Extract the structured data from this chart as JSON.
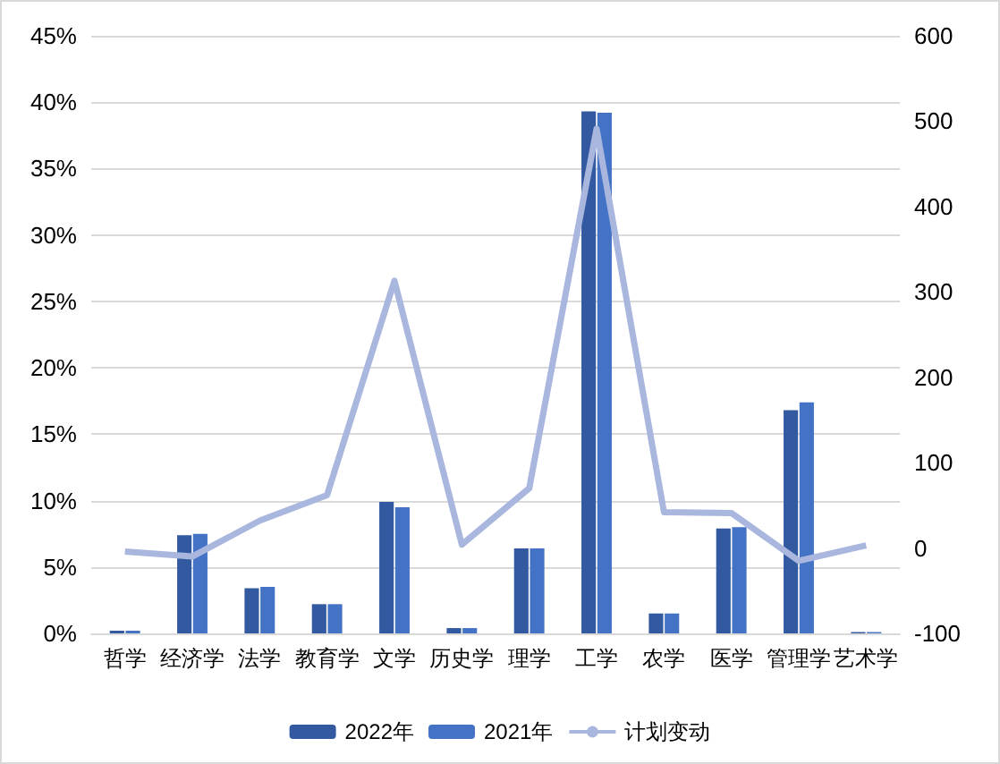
{
  "chart_data": {
    "type": "bar",
    "categories": [
      "哲学",
      "经济学",
      "法学",
      "教育学",
      "文学",
      "历史学",
      "理学",
      "工学",
      "农学",
      "医学",
      "管理学",
      "艺术学"
    ],
    "series": [
      {
        "name": "2022年",
        "color": "#335aa0",
        "values": [
          0.2,
          7.4,
          3.4,
          2.2,
          9.9,
          0.4,
          6.4,
          39.3,
          1.5,
          7.9,
          16.8,
          0.1
        ]
      },
      {
        "name": "2021年",
        "color": "#4472c4",
        "values": [
          0.2,
          7.5,
          3.5,
          2.2,
          9.5,
          0.4,
          6.4,
          39.2,
          1.5,
          8.0,
          17.4,
          0.1
        ]
      },
      {
        "name": "计划变动",
        "type": "line",
        "axis": "y2",
        "color": "#a9b7df",
        "values": [
          -4,
          -10,
          32,
          62,
          313,
          4,
          70,
          491,
          42,
          41,
          -15,
          3
        ]
      }
    ],
    "ylim": [
      0,
      45
    ],
    "yticks": [
      {
        "value": 0,
        "label": "0%"
      },
      {
        "value": 5,
        "label": "5%"
      },
      {
        "value": 10,
        "label": "10%"
      },
      {
        "value": 15,
        "label": "15%"
      },
      {
        "value": 20,
        "label": "20%"
      },
      {
        "value": 25,
        "label": "25%"
      },
      {
        "value": 30,
        "label": "30%"
      },
      {
        "value": 35,
        "label": "35%"
      },
      {
        "value": 40,
        "label": "40%"
      },
      {
        "value": 45,
        "label": "45%"
      }
    ],
    "y2lim": [
      -100,
      600
    ],
    "y2ticks": [
      -100,
      0,
      100,
      200,
      300,
      400,
      500,
      600
    ],
    "grid": "y",
    "legend": "bottom",
    "marker": "none"
  }
}
